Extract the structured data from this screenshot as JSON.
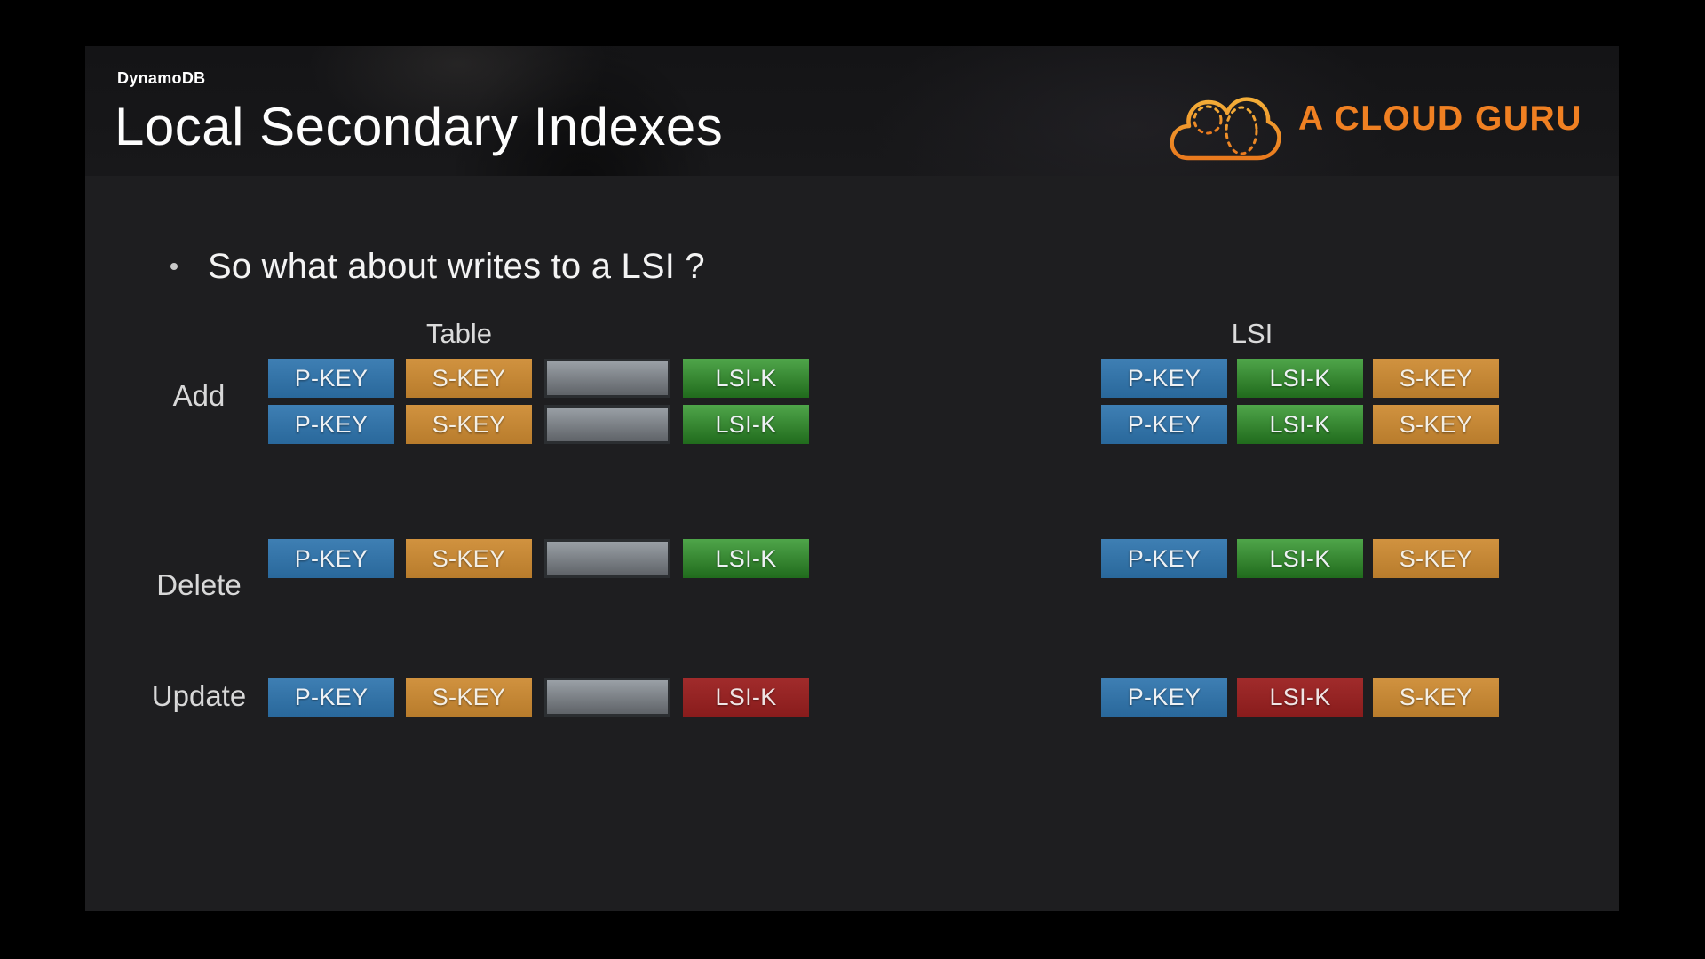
{
  "slide": {
    "eyebrow": "DynamoDB",
    "title": "Local Secondary Indexes",
    "bullet": "So what about writes to a LSI ?",
    "table_header": "Table",
    "lsi_header": "LSI"
  },
  "logo": {
    "text": "A CLOUD GURU"
  },
  "cell_labels": {
    "pkey": "P-KEY",
    "skey": "S-KEY",
    "lsik_green": "LSI-K",
    "lsik_red": "LSI-K",
    "empty": ""
  },
  "rows": [
    {
      "label": "Add",
      "table": [
        [
          "pkey",
          "skey",
          "empty",
          "lsik_green"
        ],
        [
          "pkey",
          "skey",
          "empty",
          "lsik_green"
        ]
      ],
      "lsi": [
        [
          "pkey",
          "lsik_green",
          "skey"
        ],
        [
          "pkey",
          "lsik_green",
          "skey"
        ]
      ]
    },
    {
      "label": "Delete",
      "table": [
        [
          "pkey",
          "skey",
          "empty",
          "lsik_green"
        ]
      ],
      "lsi": [
        [
          "pkey",
          "lsik_green",
          "skey"
        ]
      ]
    },
    {
      "label": "Update",
      "table": [
        [
          "pkey",
          "skey",
          "empty",
          "lsik_red"
        ]
      ],
      "lsi": [
        [
          "pkey",
          "lsik_red",
          "skey"
        ]
      ]
    }
  ],
  "colors": {
    "slide_bg": "#1e1e20",
    "pkey_blue": "#2e74ad",
    "skey_orange": "#cd8a31",
    "lsik_green": "#2d9427",
    "lsik_red": "#9c2020",
    "empty_gray_top": "#9aa0a6",
    "empty_gray_bottom": "#5f6368",
    "logo_orange": "#f08022",
    "logo_stroke_top": "#f3ae38",
    "logo_stroke_bottom": "#ea7a1e"
  }
}
